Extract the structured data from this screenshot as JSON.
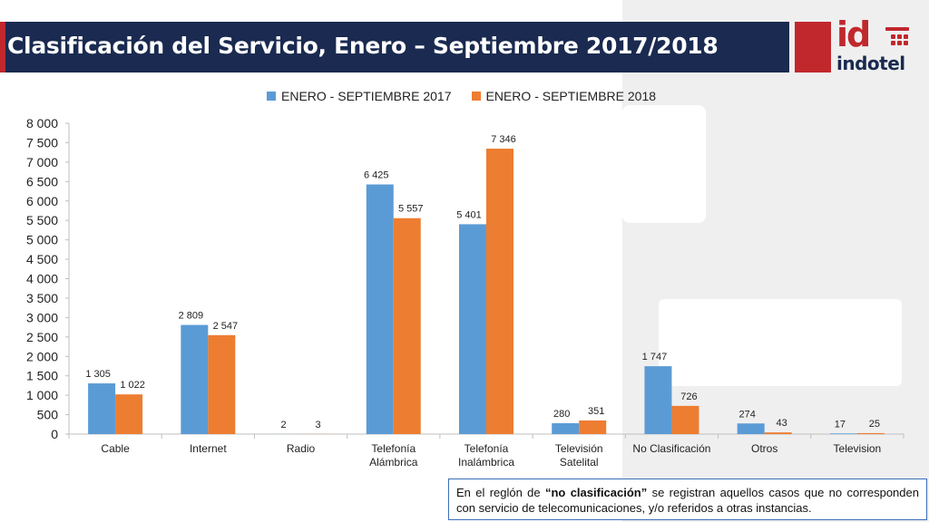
{
  "header": {
    "title": "Clasificación del Servicio, Enero – Septiembre 2017/2018",
    "logo_id": "id",
    "logo_name": "indotel"
  },
  "colors": {
    "series_2017": "#5b9bd5",
    "series_2018": "#ed7d31",
    "title_bar": "#1a2a50",
    "brand_red": "#c0282d"
  },
  "chart_data": {
    "type": "bar",
    "categories": [
      [
        "Cable"
      ],
      [
        "Internet"
      ],
      [
        "Radio"
      ],
      [
        "Telefonía",
        "Alámbrica"
      ],
      [
        "Telefonía",
        "Inalámbrica"
      ],
      [
        "Televisión",
        "Satelital"
      ],
      [
        "No Clasificación"
      ],
      [
        "Otros"
      ],
      [
        "Television"
      ]
    ],
    "series": [
      {
        "name": "ENERO - SEPTIEMBRE 2017",
        "values": [
          1305,
          2809,
          2,
          6425,
          5401,
          280,
          1747,
          274,
          17
        ],
        "labels": [
          "1 305",
          "2 809",
          "2",
          "6 425",
          "5 401",
          "280",
          "1 747",
          "274",
          "17"
        ]
      },
      {
        "name": "ENERO - SEPTIEMBRE 2018",
        "values": [
          1022,
          2547,
          3,
          5557,
          7346,
          351,
          726,
          43,
          25
        ],
        "labels": [
          "1 022",
          "2 547",
          "3",
          "5 557",
          "7 346",
          "351",
          "726",
          "43",
          "25"
        ]
      }
    ],
    "ylim": [
      0,
      8000
    ],
    "y_ticks": [
      "0",
      "500",
      "1 000",
      "1 500",
      "2 000",
      "2 500",
      "3 000",
      "3 500",
      "4 000",
      "4 500",
      "5 000",
      "5 500",
      "6 000",
      "6 500",
      "7 000",
      "7 500",
      "8 000"
    ],
    "grid": false,
    "legend_position": "top-center"
  },
  "note": {
    "before": "En el reglón de ",
    "bold": "“no clasificación”",
    "after": " se registran aquellos casos que no corresponden con servicio de telecomunicaciones, y/o referidos a otras instancias."
  }
}
